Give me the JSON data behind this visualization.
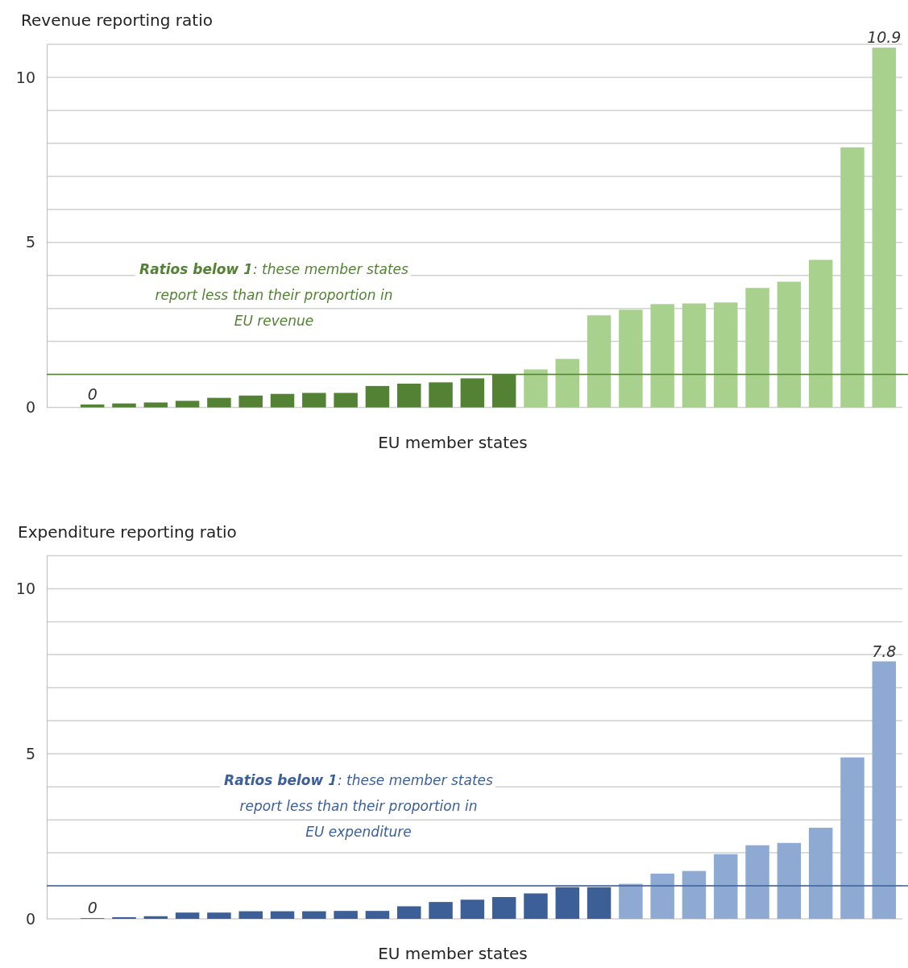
{
  "chart_data": [
    {
      "type": "bar",
      "ylabel": "Revenue reporting ratio",
      "xlabel": "EU member states",
      "categories": [
        null,
        null,
        null,
        null,
        null,
        null,
        null,
        null,
        null,
        null,
        null,
        null,
        null,
        null,
        null,
        null,
        null,
        null,
        null,
        null,
        null,
        null,
        null,
        null,
        null,
        null
      ],
      "values": [
        0.09,
        0.12,
        0.15,
        0.2,
        0.29,
        0.36,
        0.41,
        0.44,
        0.44,
        0.65,
        0.72,
        0.76,
        0.88,
        1.0,
        1.15,
        1.47,
        2.79,
        2.96,
        3.13,
        3.15,
        3.18,
        3.62,
        3.81,
        4.47,
        7.88,
        10.9
      ],
      "colors": [
        "#548235",
        "#548235",
        "#548235",
        "#548235",
        "#548235",
        "#548235",
        "#548235",
        "#548235",
        "#548235",
        "#548235",
        "#548235",
        "#548235",
        "#548235",
        "#548235",
        "#a9d18e",
        "#a9d18e",
        "#a9d18e",
        "#a9d18e",
        "#a9d18e",
        "#a9d18e",
        "#a9d18e",
        "#a9d18e",
        "#a9d18e",
        "#a9d18e",
        "#a9d18e",
        "#a9d18e"
      ],
      "value_labels": [
        "0",
        null,
        null,
        null,
        null,
        null,
        null,
        null,
        null,
        null,
        null,
        null,
        null,
        null,
        null,
        null,
        null,
        null,
        null,
        null,
        null,
        null,
        null,
        null,
        null,
        "10.9"
      ],
      "ylim": [
        0,
        11
      ],
      "yticks": [
        0,
        {
          "value": 1,
          "label": null
        },
        {
          "value": 2,
          "label": null
        },
        {
          "value": 3,
          "label": null
        },
        {
          "value": 4,
          "label": null
        },
        5,
        {
          "value": 6,
          "label": null
        },
        {
          "value": 7,
          "label": null
        },
        {
          "value": 8,
          "label": null
        },
        {
          "value": 9,
          "label": null
        },
        10,
        {
          "value": 11,
          "label": null
        }
      ],
      "grid": "y",
      "ref_lines": [
        {
          "axis": "y",
          "value": 1,
          "label": null,
          "color": "#548235"
        }
      ],
      "annotations": [
        "Ratios below 1",
        ": these member states report less than their proportion in EU revenue"
      ]
    },
    {
      "type": "bar",
      "ylabel": "Expenditure reporting ratio",
      "xlabel": "EU member states",
      "categories": [
        null,
        null,
        null,
        null,
        null,
        null,
        null,
        null,
        null,
        null,
        null,
        null,
        null,
        null,
        null,
        null,
        null,
        null,
        null,
        null,
        null,
        null,
        null,
        null,
        null,
        null
      ],
      "values": [
        0.02,
        0.05,
        0.08,
        0.19,
        0.19,
        0.23,
        0.23,
        0.23,
        0.24,
        0.24,
        0.38,
        0.51,
        0.58,
        0.66,
        0.77,
        0.96,
        0.96,
        1.06,
        1.37,
        1.45,
        1.96,
        2.23,
        2.3,
        2.76,
        4.89,
        7.8
      ],
      "colors": [
        "#3b5f96",
        "#3b5f96",
        "#3b5f96",
        "#3b5f96",
        "#3b5f96",
        "#3b5f96",
        "#3b5f96",
        "#3b5f96",
        "#3b5f96",
        "#3b5f96",
        "#3b5f96",
        "#3b5f96",
        "#3b5f96",
        "#3b5f96",
        "#3b5f96",
        "#3b5f96",
        "#3b5f96",
        "#8eaad3",
        "#8eaad3",
        "#8eaad3",
        "#8eaad3",
        "#8eaad3",
        "#8eaad3",
        "#8eaad3",
        "#8eaad3",
        "#8eaad3"
      ],
      "value_labels": [
        "0",
        null,
        null,
        null,
        null,
        null,
        null,
        null,
        null,
        null,
        null,
        null,
        null,
        null,
        null,
        null,
        null,
        null,
        null,
        null,
        null,
        null,
        null,
        null,
        null,
        "7.8"
      ],
      "ylim": [
        0,
        11
      ],
      "yticks": [
        0,
        {
          "value": 1,
          "label": null
        },
        {
          "value": 2,
          "label": null
        },
        {
          "value": 3,
          "label": null
        },
        {
          "value": 4,
          "label": null
        },
        5,
        {
          "value": 6,
          "label": null
        },
        {
          "value": 7,
          "label": null
        },
        {
          "value": 8,
          "label": null
        },
        {
          "value": 9,
          "label": null
        },
        10,
        {
          "value": 11,
          "label": null
        }
      ],
      "grid": "y",
      "ref_lines": [
        {
          "axis": "y",
          "value": 1,
          "label": null,
          "color": "#3b5f96"
        }
      ],
      "annotations": [
        "Ratios below 1",
        ": these member states report less than their proportion in EU expenditure"
      ]
    }
  ]
}
